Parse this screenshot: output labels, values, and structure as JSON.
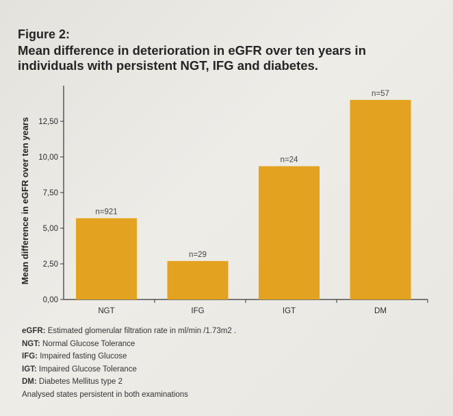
{
  "figure_label": "Figure 2:",
  "title_lines": [
    "Mean difference in deterioration in eGFR over ten years in",
    "individuals with persistent NGT, IFG and diabetes."
  ],
  "colors": {
    "bar": "#e3a21f",
    "axis": "#333333",
    "text": "#2a2a2a"
  },
  "chart_data": {
    "type": "bar",
    "title": "Mean difference in deterioration in eGFR over ten years in individuals with persistent NGT, IFG and diabetes.",
    "categories": [
      "NGT",
      "IFG",
      "IGT",
      "DM"
    ],
    "values": [
      5.7,
      2.7,
      9.35,
      14.0
    ],
    "bar_labels": [
      "n=921",
      "n=29",
      "n=24",
      "n=57"
    ],
    "ylabel": "Mean difference in eGFR over ten years",
    "xlabel": "",
    "ylim": [
      0,
      15
    ],
    "yticks": [
      0,
      2.5,
      5,
      7.5,
      10,
      12.5
    ],
    "ytick_labels": [
      "0,00",
      "2,50",
      "5,00",
      "7,50",
      "10,00",
      "12,50"
    ],
    "grid": false,
    "legend": "none"
  },
  "legend": [
    {
      "term": "eGFR:",
      "desc": " Estimated glomerular filtration rate in ml/min /1.73m2 ."
    },
    {
      "term": "NGT:",
      "desc": " Normal Glucose Tolerance"
    },
    {
      "term": "IFG:",
      "desc": " Impaired fasting Glucose"
    },
    {
      "term": "IGT:",
      "desc": " Impaired Glucose Tolerance"
    },
    {
      "term": "DM:",
      "desc": " Diabetes Mellitus type 2"
    },
    {
      "term": "",
      "desc": "Analysed states persistent in both examinations"
    }
  ]
}
